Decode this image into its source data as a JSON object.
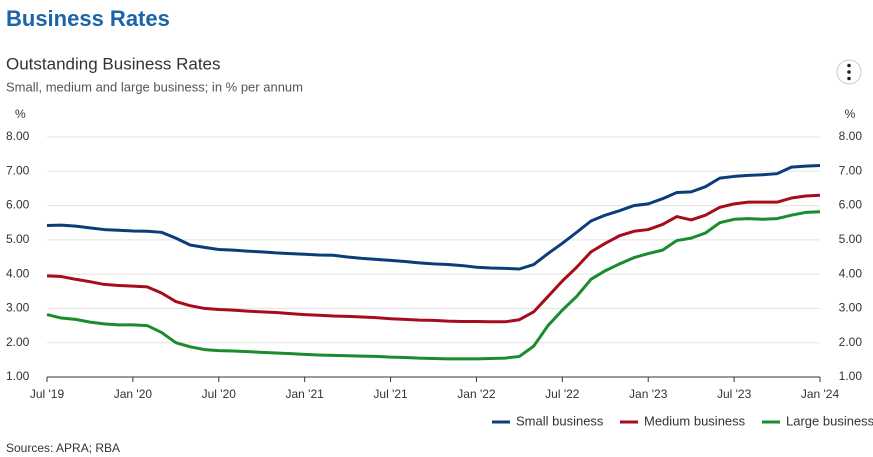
{
  "header": "Business Rates",
  "chart_data": {
    "type": "line",
    "title": "Outstanding Business Rates",
    "subtitle": "Small, medium and large business; in % per annum",
    "y_unit": "%",
    "source": "Sources: APRA; RBA",
    "categories": [
      "Jul '19",
      null,
      null,
      null,
      null,
      null,
      "Jan '20",
      null,
      null,
      null,
      null,
      null,
      "Jul '20",
      null,
      null,
      null,
      null,
      null,
      "Jan '21",
      null,
      null,
      null,
      null,
      null,
      "Jul '21",
      null,
      null,
      null,
      null,
      null,
      "Jan '22",
      null,
      null,
      null,
      null,
      null,
      "Jul '22",
      null,
      null,
      null,
      null,
      null,
      "Jan '23",
      null,
      null,
      null,
      null,
      null,
      "Jul '23",
      null,
      null,
      null,
      null,
      null,
      "Jan '24"
    ],
    "ylim": [
      1,
      8
    ],
    "yticks": [
      {
        "value": 1,
        "label": "1.00"
      },
      {
        "value": 2,
        "label": "2.00"
      },
      {
        "value": 3,
        "label": "3.00"
      },
      {
        "value": 4,
        "label": "4.00"
      },
      {
        "value": 5,
        "label": "5.00"
      },
      {
        "value": 6,
        "label": "6.00"
      },
      {
        "value": 7,
        "label": "7.00"
      },
      {
        "value": 8,
        "label": "8.00"
      }
    ],
    "y2lim": [
      1,
      8
    ],
    "y2ticks": [
      {
        "value": 1,
        "label": "1.00"
      },
      {
        "value": 2,
        "label": "2.00"
      },
      {
        "value": 3,
        "label": "3.00"
      },
      {
        "value": 4,
        "label": "4.00"
      },
      {
        "value": 5,
        "label": "5.00"
      },
      {
        "value": 6,
        "label": "6.00"
      },
      {
        "value": 7,
        "label": "7.00"
      },
      {
        "value": 8,
        "label": "8.00"
      }
    ],
    "grid": true,
    "legend": "bottom-right",
    "series": [
      {
        "name": "Small business",
        "color": "#0b3d7a",
        "values": [
          5.42,
          5.43,
          5.4,
          5.35,
          5.3,
          5.28,
          5.26,
          5.25,
          5.22,
          5.05,
          4.85,
          4.78,
          4.72,
          4.7,
          4.67,
          4.65,
          4.62,
          4.6,
          4.58,
          4.56,
          4.55,
          4.5,
          4.46,
          4.43,
          4.4,
          4.37,
          4.33,
          4.3,
          4.28,
          4.25,
          4.2,
          4.18,
          4.17,
          4.15,
          4.28,
          4.6,
          4.9,
          5.22,
          5.55,
          5.72,
          5.85,
          6.0,
          6.05,
          6.2,
          6.38,
          6.4,
          6.55,
          6.8,
          6.85,
          6.88,
          6.9,
          6.93,
          7.12,
          7.15,
          7.17
        ]
      },
      {
        "name": "Medium business",
        "color": "#a50d1e",
        "values": [
          3.95,
          3.93,
          3.85,
          3.78,
          3.7,
          3.67,
          3.65,
          3.63,
          3.45,
          3.2,
          3.08,
          3.0,
          2.97,
          2.95,
          2.92,
          2.9,
          2.88,
          2.85,
          2.82,
          2.8,
          2.78,
          2.77,
          2.75,
          2.73,
          2.7,
          2.68,
          2.66,
          2.65,
          2.63,
          2.62,
          2.62,
          2.61,
          2.61,
          2.67,
          2.9,
          3.35,
          3.8,
          4.2,
          4.65,
          4.9,
          5.12,
          5.25,
          5.3,
          5.45,
          5.68,
          5.58,
          5.72,
          5.95,
          6.05,
          6.1,
          6.1,
          6.1,
          6.22,
          6.28,
          6.3
        ]
      },
      {
        "name": "Large business",
        "color": "#1a8c2e",
        "values": [
          2.82,
          2.72,
          2.68,
          2.6,
          2.55,
          2.52,
          2.52,
          2.5,
          2.3,
          2.0,
          1.88,
          1.8,
          1.77,
          1.76,
          1.74,
          1.72,
          1.7,
          1.68,
          1.66,
          1.64,
          1.63,
          1.62,
          1.61,
          1.6,
          1.58,
          1.57,
          1.55,
          1.54,
          1.53,
          1.53,
          1.53,
          1.54,
          1.55,
          1.6,
          1.9,
          2.5,
          2.95,
          3.35,
          3.85,
          4.1,
          4.3,
          4.48,
          4.6,
          4.7,
          4.98,
          5.05,
          5.2,
          5.5,
          5.6,
          5.62,
          5.6,
          5.62,
          5.72,
          5.8,
          5.82
        ]
      }
    ]
  }
}
